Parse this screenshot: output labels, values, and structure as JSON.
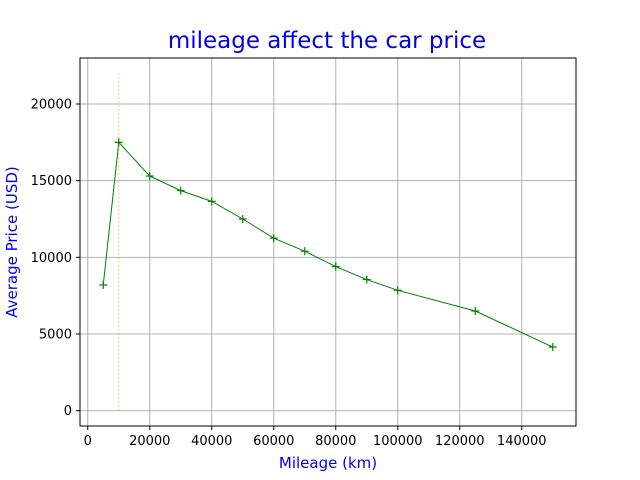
{
  "chart_data": {
    "type": "line",
    "title": "mileage affect the car price",
    "xlabel": "Mileage (km)",
    "ylabel": "Average Price (USD)",
    "xlim": [
      -2500,
      157500
    ],
    "ylim": [
      -1000,
      23000
    ],
    "xticks": [
      0,
      20000,
      40000,
      60000,
      80000,
      100000,
      120000,
      140000
    ],
    "yticks": [
      0,
      5000,
      10000,
      15000,
      20000
    ],
    "grid": true,
    "series": [
      {
        "color": "#008000",
        "marker": "plus",
        "points": [
          {
            "x": 5000,
            "y": 8200
          },
          {
            "x": 10000,
            "y": 17500
          },
          {
            "x": 20000,
            "y": 15300
          },
          {
            "x": 30000,
            "y": 14350
          },
          {
            "x": 40000,
            "y": 13650
          },
          {
            "x": 50000,
            "y": 12500
          },
          {
            "x": 60000,
            "y": 11250
          },
          {
            "x": 70000,
            "y": 10400
          },
          {
            "x": 80000,
            "y": 9400
          },
          {
            "x": 90000,
            "y": 8550
          },
          {
            "x": 100000,
            "y": 7850
          },
          {
            "x": 125000,
            "y": 6500
          },
          {
            "x": 150000,
            "y": 4150
          }
        ]
      }
    ],
    "reference_line": {
      "orientation": "vertical",
      "x": 10000,
      "y_range": [
        0,
        22000
      ],
      "color": "#ffa500",
      "style": "dotted"
    },
    "colors": {
      "title": "#0000ee",
      "axis_labels": "#0000ee",
      "grid": "#b0b0b0"
    }
  }
}
